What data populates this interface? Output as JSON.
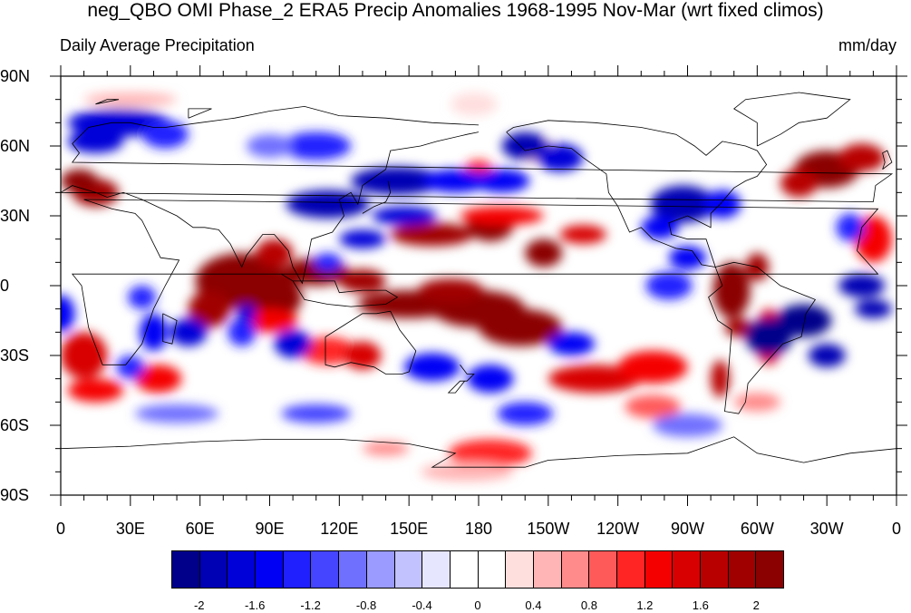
{
  "figure": {
    "title": "neg_QBO OMI Phase_2 ERA5 Precip Anomalies 1968-1995 Nov-Mar (wrt fixed climos)",
    "subtitle_left": "Daily Average Precipitation",
    "subtitle_right": "mm/day"
  },
  "chart_data": {
    "type": "heatmap",
    "projection": "cylindrical equidistant, 0 to 360 longitude, centered on 180",
    "variable": "precipitation anomaly",
    "units": "mm/day",
    "lat_ticks": [
      "90N",
      "60N",
      "30N",
      "0",
      "30S",
      "60S",
      "90S"
    ],
    "lon_ticks": [
      "0",
      "30E",
      "60E",
      "90E",
      "120E",
      "150E",
      "180",
      "150W",
      "120W",
      "90W",
      "60W",
      "30W",
      "0"
    ],
    "colorbar": {
      "colors": [
        "#00008b",
        "#0000b4",
        "#0000d8",
        "#0000f5",
        "#2020ff",
        "#4545ff",
        "#7070ff",
        "#9a9aff",
        "#c2c2ff",
        "#e6e6ff",
        "#ffffff",
        "#ffffff",
        "#ffdede",
        "#ffb5b5",
        "#ff8b8b",
        "#ff5a5a",
        "#ff2525",
        "#f50000",
        "#d80000",
        "#b80000",
        "#a00000",
        "#8b0000"
      ],
      "tick_labels": [
        "-2",
        "-1.6",
        "-1.2",
        "-0.8",
        "-0.4",
        "0",
        "0.4",
        "0.8",
        "1.2",
        "1.6",
        "2"
      ],
      "range": [
        -2.2,
        2.2
      ],
      "interval": 0.2
    },
    "anomaly_regions_approx": [
      {
        "region": "central Indian Ocean / equator 60E-100E",
        "sign": "positive",
        "magnitude": ">2"
      },
      {
        "region": "equatorial west-central Pacific 150E-160W, 0-20S",
        "sign": "positive",
        "magnitude": ">2"
      },
      {
        "region": "northern Pacific 20N-30N around 150W",
        "sign": "positive",
        "magnitude": ">2"
      },
      {
        "region": "equatorial eastern Pacific / Amazon 60W-80W",
        "sign": "positive",
        "magnitude": ">2"
      },
      {
        "region": "South Atlantic 20S-40S",
        "sign": "negative",
        "magnitude": "<-2"
      },
      {
        "region": "North Pacific 30N-45N 120E-180",
        "sign": "negative",
        "magnitude": "<-1.6"
      },
      {
        "region": "Indian Ocean 10S-25S",
        "sign": "negative",
        "magnitude": "<-1.6"
      },
      {
        "region": "Atlantic equatorial 30W-0",
        "sign": "negative",
        "magnitude": "<-2"
      },
      {
        "region": "North Atlantic 45N-60N 30W-0",
        "sign": "positive",
        "magnitude": ">2"
      },
      {
        "region": "Antarctic coast near 180",
        "sign": "positive",
        "magnitude": ">1.2"
      }
    ]
  }
}
